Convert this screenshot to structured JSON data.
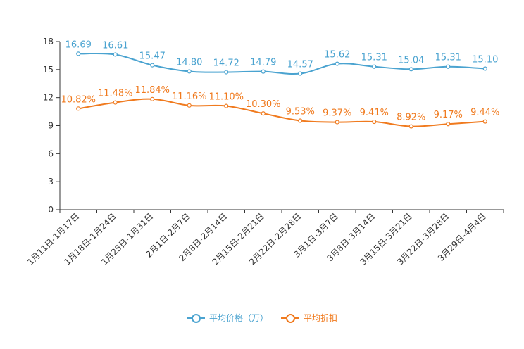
{
  "chart_data": {
    "type": "line",
    "title": "",
    "xlabel": "",
    "ylabel": "",
    "ylim": [
      0,
      18
    ],
    "yticks": [
      0,
      3,
      6,
      9,
      12,
      15,
      18
    ],
    "grid": false,
    "legend_position": "bottom",
    "categories": [
      "1月11日-1月17日",
      "1月18日-1月24日",
      "1月25日-1月31日",
      "2月1日-2月7日",
      "2月8日-2月14日",
      "2月15日-2月21日",
      "2月22日-2月28日",
      "3月1日-3月7日",
      "3月8日-3月14日",
      "3月15日-3月21日",
      "3月22日-3月28日",
      "3月29日-4月4日"
    ],
    "series": [
      {
        "name": "平均价格（万）",
        "color": "#4aa3d0",
        "values": [
          16.69,
          16.61,
          15.47,
          14.8,
          14.72,
          14.79,
          14.57,
          15.62,
          15.31,
          15.04,
          15.31,
          15.1
        ],
        "labels": [
          "16.69",
          "16.61",
          "15.47",
          "14.80",
          "14.72",
          "14.79",
          "14.57",
          "15.62",
          "15.31",
          "15.04",
          "15.31",
          "15.10"
        ]
      },
      {
        "name": "平均折扣",
        "color": "#f07a1e",
        "values": [
          10.82,
          11.48,
          11.84,
          11.16,
          11.1,
          10.3,
          9.53,
          9.37,
          9.41,
          8.92,
          9.17,
          9.44
        ],
        "labels": [
          "10.82%",
          "11.48%",
          "11.84%",
          "11.16%",
          "11.10%",
          "10.30%",
          "9.53%",
          "9.37%",
          "9.41%",
          "8.92%",
          "9.17%",
          "9.44%"
        ]
      }
    ]
  }
}
